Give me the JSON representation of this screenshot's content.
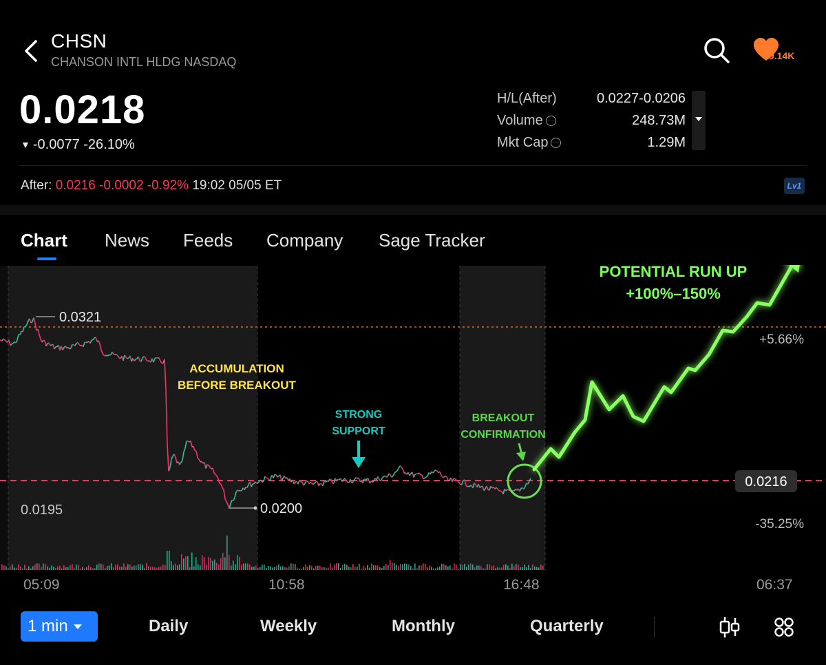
{
  "header": {
    "ticker": "CHSN",
    "full_name": "CHANSON INTL HLDG NASDAQ",
    "follow_count": "9.14K"
  },
  "quote": {
    "price": "0.0218",
    "change_text": "-0.0077 -26.10%"
  },
  "stats": [
    {
      "label": "H/L(After)",
      "value": "0.0227-0.0206",
      "info": false
    },
    {
      "label": "Volume",
      "value": "248.73M",
      "info": true
    },
    {
      "label": "Mkt Cap",
      "value": "1.29M",
      "info": true
    }
  ],
  "after_hours": {
    "label": "After:",
    "price": "0.0216",
    "change": "-0.0002",
    "pct": "-0.92%",
    "time": "19:02 05/05 ET",
    "level_badge": "Lv1"
  },
  "tabs": [
    "Chart",
    "News",
    "Feeds",
    "Company",
    "Sage Tracker"
  ],
  "active_tab": "Chart",
  "chart_data": {
    "type": "line",
    "x_ticks": [
      "05:09",
      "10:58",
      "16:48",
      "06:37"
    ],
    "high_label": "0.0321",
    "low_label": "0.0200",
    "left_axis_low": "0.0195",
    "current_price_label": "0.0216",
    "pct_top": "+5.66%",
    "pct_bottom": "-35.25%",
    "annotations": {
      "accumulation": [
        "ACCUMULATION",
        "BEFORE BREAKOUT"
      ],
      "support": [
        "STRONG",
        "SUPPORT"
      ],
      "breakout": [
        "BREAKOUT",
        "CONFIRMATION"
      ],
      "runup": [
        "POTENTIAL RUN UP",
        "+100%–150%"
      ]
    },
    "colors": {
      "up": "#20c7a0",
      "down": "#ff2d6a",
      "projection": "#7dff5a",
      "accumulation_text": "#ffe44d",
      "support_text": "#19c8c0",
      "reference_line": "#ff2d55",
      "upper_line": "#ff7a2b"
    }
  },
  "periods": [
    "1 min",
    "Daily",
    "Weekly",
    "Monthly",
    "Quarterly"
  ],
  "active_period": "1 min",
  "icons": [
    "back-arrow-icon",
    "search-icon",
    "heart-icon",
    "info-icon",
    "candlestick-settings-icon",
    "grid-icon"
  ]
}
